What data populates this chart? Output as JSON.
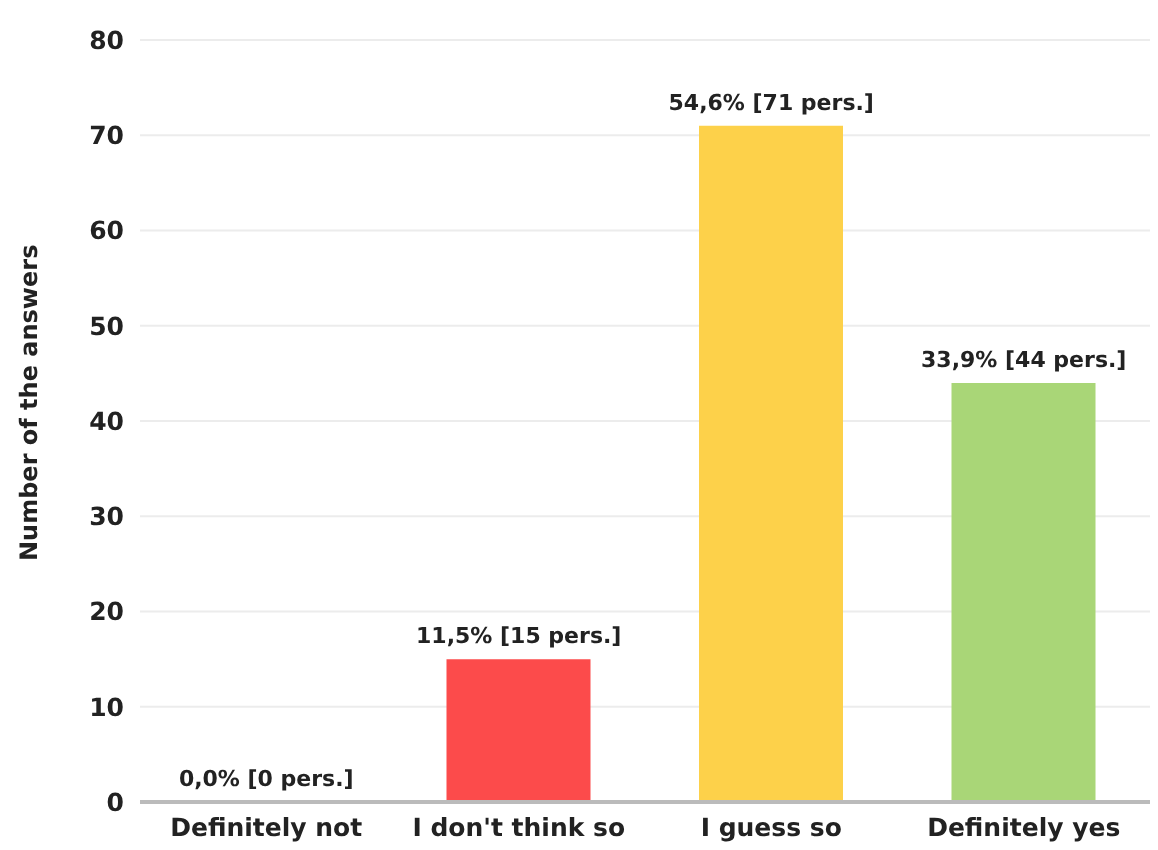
{
  "chart_data": {
    "type": "bar",
    "ylabel": "Number of the answers",
    "categories": [
      "Definitely not",
      "I don't think so",
      "I guess so",
      "Definitely yes"
    ],
    "values": [
      0,
      15,
      71,
      44
    ],
    "colors": [
      "#e03c3c",
      "#fc4b4b",
      "#fdd14a",
      "#a9d677"
    ],
    "value_labels": [
      "0,0% [0 pers.]",
      "11,5% [15 pers.]",
      "54,6% [71 pers.]",
      "33,9% [44 pers.]"
    ],
    "ylim": [
      0,
      80
    ],
    "yticks": [
      0,
      10,
      20,
      30,
      40,
      50,
      60,
      70,
      80
    ],
    "grid": "y"
  }
}
